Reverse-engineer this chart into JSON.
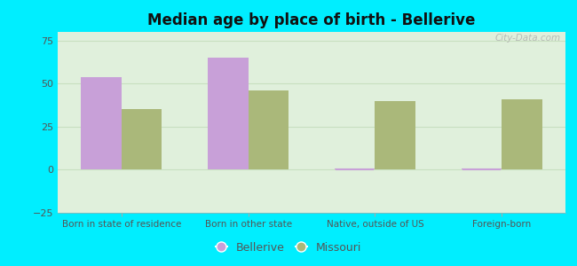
{
  "title": "Median age by place of birth - Bellerive",
  "categories": [
    "Born in state of residence",
    "Born in other state",
    "Native, outside of US",
    "Foreign-born"
  ],
  "bellerive_values": [
    54,
    65,
    0.5,
    0.5
  ],
  "missouri_values": [
    35,
    46,
    40,
    41
  ],
  "bellerive_color": "#c8a0d8",
  "missouri_color": "#aab87a",
  "background_color": "#00eeff",
  "plot_bg_color": "#e0f0dc",
  "ylim": [
    -25,
    80
  ],
  "yticks": [
    -25,
    0,
    25,
    50,
    75
  ],
  "bar_width": 0.32,
  "legend_bellerive": "Bellerive",
  "legend_missouri": "Missouri",
  "watermark": "City-Data.com",
  "zero_line_color": "#c8a0d8",
  "grid_color": "#c8dfc0",
  "tick_label_color": "#555555",
  "title_color": "#111111"
}
